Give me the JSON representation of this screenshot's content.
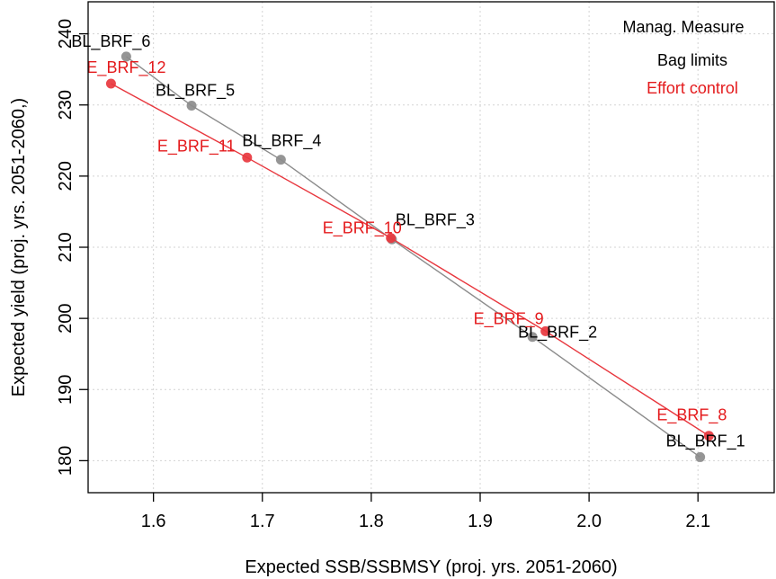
{
  "chart_data": {
    "type": "scatter",
    "title": "",
    "xlabel": "Expected SSB/SSBMSY (proj. yrs. 2051-2060)",
    "ylabel": "Expected yield (proj. yrs. 2051-2060,)",
    "xlim": [
      1.54,
      2.17
    ],
    "ylim": [
      175.5,
      244.5
    ],
    "x_ticks": [
      1.6,
      1.7,
      1.8,
      1.9,
      2.0,
      2.1
    ],
    "x_tick_labels": [
      "1.6",
      "1.7",
      "1.8",
      "1.9",
      "2.0",
      "2.1"
    ],
    "y_ticks": [
      180,
      190,
      200,
      210,
      220,
      230,
      240
    ],
    "y_tick_labels": [
      "180",
      "190",
      "200",
      "210",
      "220",
      "230",
      "240"
    ],
    "grid": true,
    "legend": {
      "title": "Manag. Measure",
      "placement": "top-right",
      "entries": [
        "Bag limits",
        "Effort control"
      ]
    },
    "series": [
      {
        "name": "Bag limits",
        "color": "#8c8c8c",
        "label_color": "#000000",
        "points": [
          {
            "label": "BL_BRF_1",
            "x": 2.102,
            "y": 180.5
          },
          {
            "label": "BL_BRF_2",
            "x": 1.948,
            "y": 197.4
          },
          {
            "label": "BL_BRF_3",
            "x": 1.819,
            "y": 211.1
          },
          {
            "label": "BL_BRF_4",
            "x": 1.717,
            "y": 222.3
          },
          {
            "label": "BL_BRF_5",
            "x": 1.635,
            "y": 229.9
          },
          {
            "label": "BL_BRF_6",
            "x": 1.575,
            "y": 236.8
          }
        ]
      },
      {
        "name": "Effort control",
        "color": "#e8373e",
        "label_color": "#e41a1c",
        "points": [
          {
            "label": "E_BRF_8",
            "x": 2.11,
            "y": 183.5
          },
          {
            "label": "E_BRF_9",
            "x": 1.96,
            "y": 198.2
          },
          {
            "label": "E_BRF_10",
            "x": 1.818,
            "y": 211.3
          },
          {
            "label": "E_BRF_11",
            "x": 1.686,
            "y": 222.6
          },
          {
            "label": "E_BRF_12",
            "x": 1.561,
            "y": 233.0
          }
        ]
      }
    ]
  }
}
